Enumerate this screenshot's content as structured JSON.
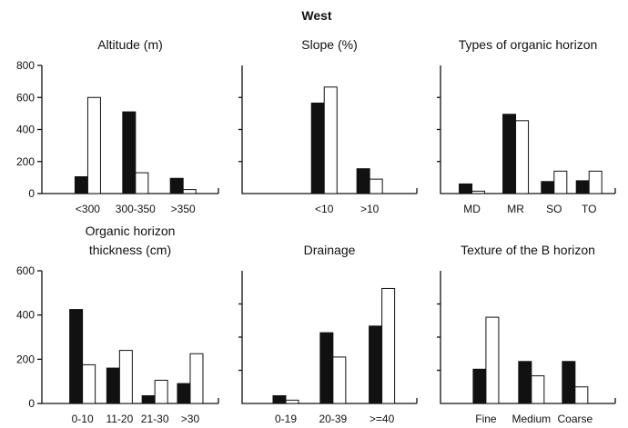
{
  "chart_data": {
    "title": "West",
    "series_colors": {
      "dark": "#111111",
      "light": "#ffffff"
    },
    "panels": [
      {
        "type": "bar",
        "title": "Altitude (m)",
        "categories": [
          "<300",
          "300-350",
          ">350"
        ],
        "series": [
          {
            "values": [
              105,
              510,
              95
            ]
          },
          {
            "values": [
              600,
              130,
              25
            ]
          }
        ],
        "ylim": [
          0,
          800
        ],
        "yticks": [
          "0",
          "200",
          "400",
          "600",
          "800"
        ],
        "show_y_ticks": true
      },
      {
        "type": "bar",
        "title": "Slope (%)",
        "categories": [
          "<10",
          ">10"
        ],
        "series": [
          {
            "values": [
              565,
              155
            ]
          },
          {
            "values": [
              665,
              90
            ]
          }
        ],
        "ylim": [
          0,
          800
        ],
        "show_y_ticks": false
      },
      {
        "type": "bar",
        "title": "Types of organic horizon",
        "categories": [
          "MD",
          "MR",
          "SO",
          "TO"
        ],
        "series": [
          {
            "values": [
              60,
              495,
              75,
              80
            ]
          },
          {
            "values": [
              15,
              455,
              140,
              140
            ]
          }
        ],
        "ylim": [
          0,
          800
        ],
        "show_y_ticks": false
      },
      {
        "type": "bar",
        "title": [
          "Organic horizon",
          "thickness (cm)"
        ],
        "categories": [
          "0-10",
          "11-20",
          "21-30",
          ">30"
        ],
        "series": [
          {
            "values": [
              425,
              160,
              35,
              90
            ]
          },
          {
            "values": [
              175,
              240,
              105,
              225
            ]
          }
        ],
        "ylim": [
          0,
          600
        ],
        "yticks": [
          "0",
          "200",
          "400",
          "600"
        ],
        "show_y_ticks": true
      },
      {
        "type": "bar",
        "title": "Drainage",
        "categories": [
          "0-19",
          "20-39",
          ">=40"
        ],
        "series": [
          {
            "values": [
              35,
              320,
              350
            ]
          },
          {
            "values": [
              15,
              210,
              520
            ]
          }
        ],
        "ylim": [
          0,
          600
        ],
        "show_y_ticks": false
      },
      {
        "type": "bar",
        "title": "Texture of the B horizon",
        "categories": [
          "Fine",
          "Medium",
          "Coarse"
        ],
        "series": [
          {
            "values": [
              155,
              190,
              190
            ]
          },
          {
            "values": [
              390,
              125,
              75
            ]
          }
        ],
        "ylim": [
          0,
          600
        ],
        "show_y_ticks": false
      }
    ]
  }
}
